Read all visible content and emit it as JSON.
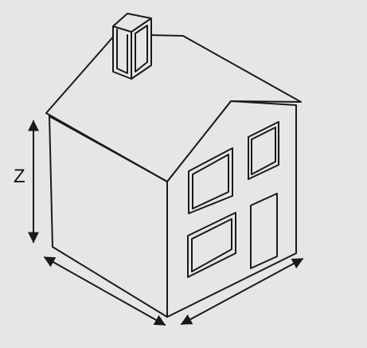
{
  "diagram": {
    "dimension_label": "Z",
    "colors": {
      "background": "#e6e6e6",
      "stroke": "#1a1a1a",
      "window_inner": "#d9d9d9"
    }
  }
}
